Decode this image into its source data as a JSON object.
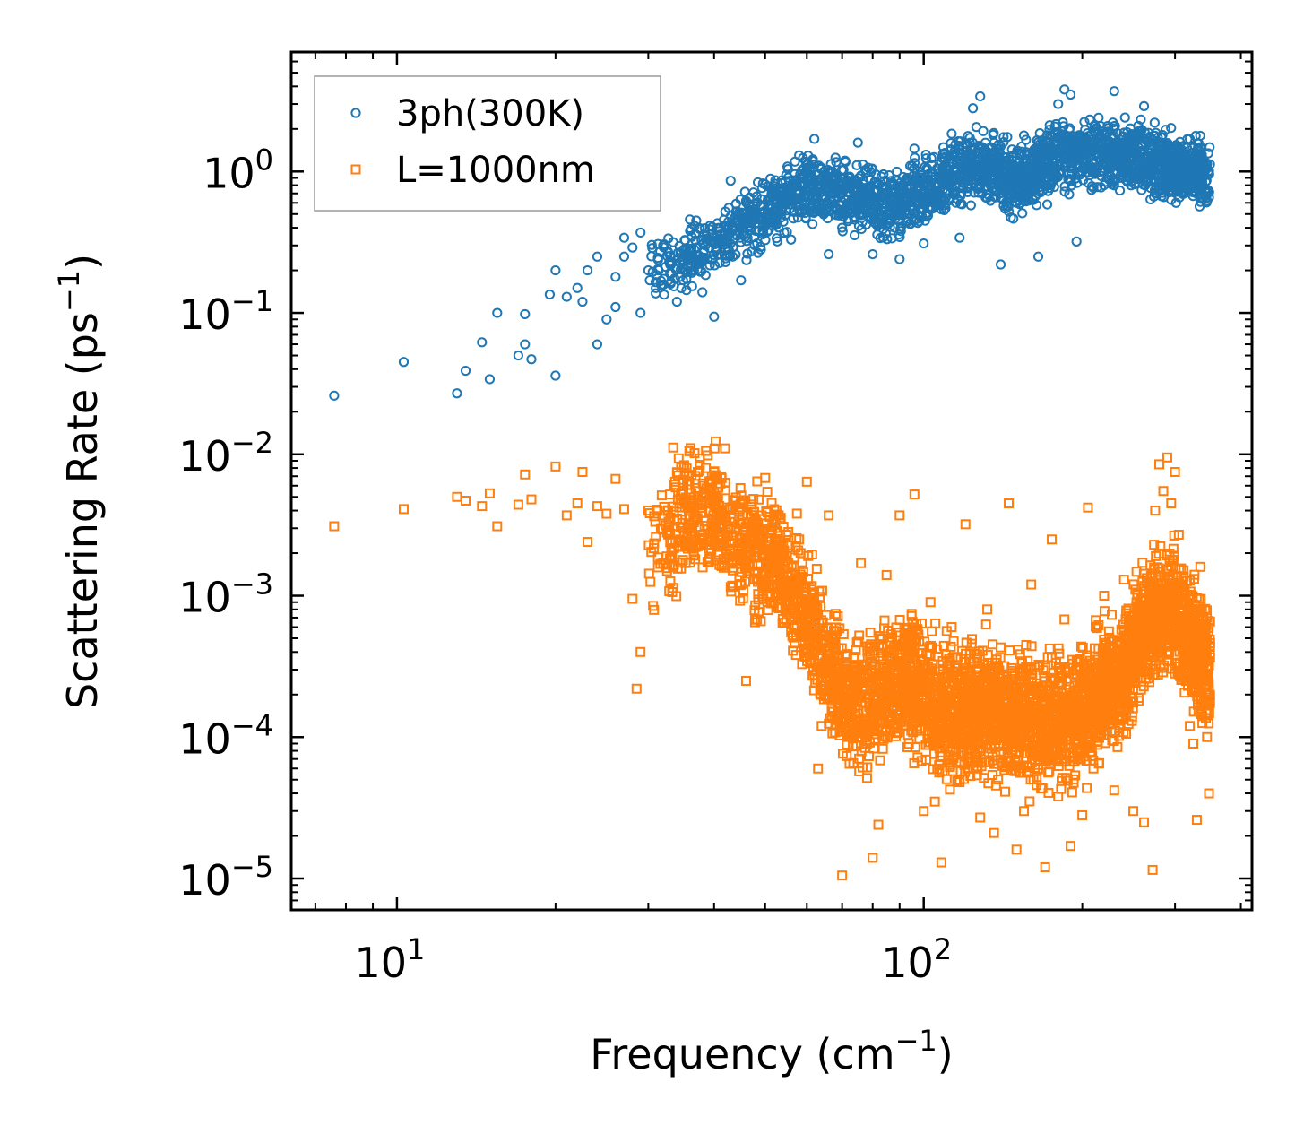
{
  "chart_data": {
    "type": "scatter",
    "title": "",
    "xlabel": "Frequency (cm",
    "xlabel_sup": "−1",
    "xlabel_tail": ")",
    "ylabel": "Scattering Rate (ps",
    "ylabel_sup": "−1",
    "ylabel_tail": ")",
    "xscale": "log",
    "yscale": "log",
    "xlim": [
      6.3,
      420
    ],
    "ylim": [
      6e-06,
      7
    ],
    "x_ticks": [
      {
        "value": 10,
        "base": "10",
        "exp": "1"
      },
      {
        "value": 100,
        "base": "10",
        "exp": "2"
      }
    ],
    "y_ticks": [
      {
        "value": 1,
        "base": "10",
        "exp": "0"
      },
      {
        "value": 0.1,
        "base": "10",
        "exp": "−1"
      },
      {
        "value": 0.01,
        "base": "10",
        "exp": "−2"
      },
      {
        "value": 0.001,
        "base": "10",
        "exp": "−3"
      },
      {
        "value": 0.0001,
        "base": "10",
        "exp": "−4"
      },
      {
        "value": 1e-05,
        "base": "10",
        "exp": "−5"
      }
    ],
    "legend_position": "top-left",
    "series": [
      {
        "name": "3ph(300K)",
        "marker": "circle",
        "color": "#1f77b4",
        "points": [
          [
            7.6,
            0.026
          ],
          [
            10.3,
            0.045
          ],
          [
            13,
            0.027
          ],
          [
            13.5,
            0.039
          ],
          [
            14.5,
            0.062
          ],
          [
            15,
            0.034
          ],
          [
            15.5,
            0.1
          ],
          [
            17,
            0.05
          ],
          [
            17.5,
            0.06
          ],
          [
            18,
            0.047
          ],
          [
            20,
            0.036
          ],
          [
            17.5,
            0.098
          ],
          [
            19.5,
            0.135
          ],
          [
            20,
            0.2
          ],
          [
            21,
            0.13
          ],
          [
            22,
            0.15
          ],
          [
            22.5,
            0.12
          ],
          [
            23,
            0.2
          ],
          [
            24,
            0.06
          ],
          [
            24,
            0.25
          ],
          [
            25,
            0.09
          ],
          [
            26,
            0.11
          ],
          [
            26,
            0.18
          ],
          [
            27,
            0.25
          ],
          [
            27,
            0.34
          ],
          [
            28,
            0.29
          ],
          [
            29,
            0.37
          ],
          [
            29,
            0.1
          ],
          [
            30,
            0.2
          ],
          [
            31,
            0.15
          ],
          [
            32,
            0.3
          ],
          [
            33,
            0.22
          ],
          [
            34,
            0.12
          ],
          [
            35,
            0.28
          ],
          [
            36,
            0.38
          ],
          [
            37,
            0.45
          ],
          [
            38,
            0.14
          ],
          [
            39,
            0.33
          ],
          [
            40,
            0.094
          ],
          [
            41,
            0.26
          ],
          [
            42,
            0.52
          ],
          [
            43,
            0.86
          ],
          [
            44,
            0.45
          ],
          [
            45,
            0.17
          ],
          [
            46,
            0.62
          ],
          [
            48,
            0.38
          ],
          [
            50,
            0.81
          ],
          [
            52,
            0.47
          ],
          [
            54,
            0.68
          ],
          [
            56,
            0.33
          ],
          [
            58,
            1.3
          ],
          [
            60,
            1.05
          ],
          [
            62,
            1.7
          ],
          [
            64,
            0.55
          ],
          [
            66,
            0.26
          ],
          [
            68,
            1.25
          ],
          [
            70,
            0.4
          ],
          [
            72,
            0.9
          ],
          [
            75,
            1.6
          ],
          [
            78,
            0.55
          ],
          [
            80,
            0.26
          ],
          [
            82,
            0.8
          ],
          [
            85,
            0.42
          ],
          [
            88,
            0.65
          ],
          [
            90,
            0.24
          ],
          [
            93,
            0.9
          ],
          [
            96,
            1.45
          ],
          [
            100,
            0.31
          ],
          [
            103,
            0.7
          ],
          [
            106,
            1.05
          ],
          [
            110,
            0.55
          ],
          [
            113,
            1.85
          ],
          [
            117,
            0.34
          ],
          [
            120,
            1.3
          ],
          [
            124,
            2.8
          ],
          [
            128,
            3.4
          ],
          [
            132,
            0.65
          ],
          [
            136,
            1.6
          ],
          [
            140,
            0.22
          ],
          [
            145,
            0.95
          ],
          [
            150,
            0.6
          ],
          [
            155,
            1.8
          ],
          [
            160,
            1.2
          ],
          [
            165,
            0.25
          ],
          [
            170,
            0.8
          ],
          [
            175,
            1.2
          ],
          [
            180,
            3.0
          ],
          [
            185,
            3.8
          ],
          [
            190,
            3.5
          ],
          [
            195,
            0.32
          ],
          [
            200,
            1.0
          ],
          [
            210,
            1.4
          ],
          [
            220,
            0.8
          ],
          [
            230,
            3.7
          ],
          [
            240,
            1.0
          ],
          [
            250,
            0.95
          ],
          [
            262,
            2.9
          ],
          [
            275,
            0.7
          ],
          [
            290,
            1.1
          ],
          [
            305,
            0.85
          ],
          [
            320,
            1.7
          ],
          [
            335,
            0.9
          ],
          [
            345,
            0.62
          ]
        ]
      },
      {
        "name": "L=1000nm",
        "marker": "square",
        "color": "#ff7f0e",
        "points": [
          [
            7.6,
            0.0031
          ],
          [
            10.3,
            0.0041
          ],
          [
            13,
            0.005
          ],
          [
            13.5,
            0.0047
          ],
          [
            14.5,
            0.0043
          ],
          [
            15,
            0.0053
          ],
          [
            15.5,
            0.0031
          ],
          [
            17,
            0.0044
          ],
          [
            17.5,
            0.0072
          ],
          [
            18,
            0.0048
          ],
          [
            20,
            0.0082
          ],
          [
            21,
            0.0037
          ],
          [
            22,
            0.0045
          ],
          [
            22.5,
            0.0075
          ],
          [
            23,
            0.0024
          ],
          [
            24,
            0.0043
          ],
          [
            25,
            0.0038
          ],
          [
            26,
            0.0067
          ],
          [
            27,
            0.0041
          ],
          [
            28,
            0.00095
          ],
          [
            28.5,
            0.00022
          ],
          [
            29,
            0.0004
          ],
          [
            30,
            0.004
          ],
          [
            31,
            0.0026
          ],
          [
            32,
            0.0017
          ],
          [
            33,
            0.0052
          ],
          [
            34,
            0.0074
          ],
          [
            35,
            0.0063
          ],
          [
            36,
            0.0045
          ],
          [
            38,
            0.0027
          ],
          [
            40,
            0.0075
          ],
          [
            42,
            0.0063
          ],
          [
            44,
            0.0019
          ],
          [
            46,
            0.00025
          ],
          [
            48,
            0.0035
          ],
          [
            50,
            0.0068
          ],
          [
            52,
            0.0022
          ],
          [
            54,
            0.0011
          ],
          [
            56,
            0.00055
          ],
          [
            58,
            0.0025
          ],
          [
            60,
            0.0064
          ],
          [
            62,
            0.0009
          ],
          [
            63,
            6e-05
          ],
          [
            64,
            0.00012
          ],
          [
            66,
            0.0037
          ],
          [
            68,
            0.00022
          ],
          [
            70,
            1.05e-05
          ],
          [
            72,
            0.00024
          ],
          [
            74,
            0.00011
          ],
          [
            76,
            0.0017
          ],
          [
            78,
            9e-05
          ],
          [
            80,
            1.4e-05
          ],
          [
            82,
            2.4e-05
          ],
          [
            85,
            0.0014
          ],
          [
            88,
            0.00019
          ],
          [
            90,
            0.0037
          ],
          [
            93,
            0.00015
          ],
          [
            96,
            0.0052
          ],
          [
            100,
            3e-05
          ],
          [
            103,
            0.0009
          ],
          [
            105,
            3.5e-05
          ],
          [
            108,
            1.3e-05
          ],
          [
            110,
            0.00011
          ],
          [
            113,
            0.0006
          ],
          [
            117,
            4.8e-05
          ],
          [
            120,
            0.0032
          ],
          [
            124,
            0.00014
          ],
          [
            128,
            2.7e-05
          ],
          [
            132,
            0.0008
          ],
          [
            136,
            2.1e-05
          ],
          [
            140,
            0.00011
          ],
          [
            145,
            0.0045
          ],
          [
            150,
            1.6e-05
          ],
          [
            155,
            3e-05
          ],
          [
            160,
            0.0012
          ],
          [
            165,
            0.0001
          ],
          [
            170,
            1.2e-05
          ],
          [
            175,
            0.0025
          ],
          [
            180,
            3.8e-05
          ],
          [
            185,
            0.00068
          ],
          [
            190,
            1.7e-05
          ],
          [
            195,
            0.00013
          ],
          [
            200,
            2.8e-05
          ],
          [
            205,
            0.0042
          ],
          [
            210,
            6e-05
          ],
          [
            220,
            0.001
          ],
          [
            230,
            4.2e-05
          ],
          [
            240,
            0.0013
          ],
          [
            250,
            3e-05
          ],
          [
            255,
            0.0008
          ],
          [
            262,
            2.5e-05
          ],
          [
            268,
            0.0011
          ],
          [
            272,
            1.15e-05
          ],
          [
            275,
            0.004
          ],
          [
            280,
            0.0085
          ],
          [
            285,
            0.0055
          ],
          [
            290,
            0.0095
          ],
          [
            295,
            0.0045
          ],
          [
            300,
            0.0075
          ],
          [
            305,
            0.0027
          ],
          [
            310,
            0.00045
          ],
          [
            315,
            0.00025
          ],
          [
            320,
            0.00012
          ],
          [
            325,
            9e-05
          ],
          [
            330,
            2.6e-05
          ],
          [
            335,
            0.0016
          ],
          [
            340,
            0.0005
          ],
          [
            345,
            0.0001
          ],
          [
            348,
            4e-05
          ]
        ]
      }
    ]
  }
}
